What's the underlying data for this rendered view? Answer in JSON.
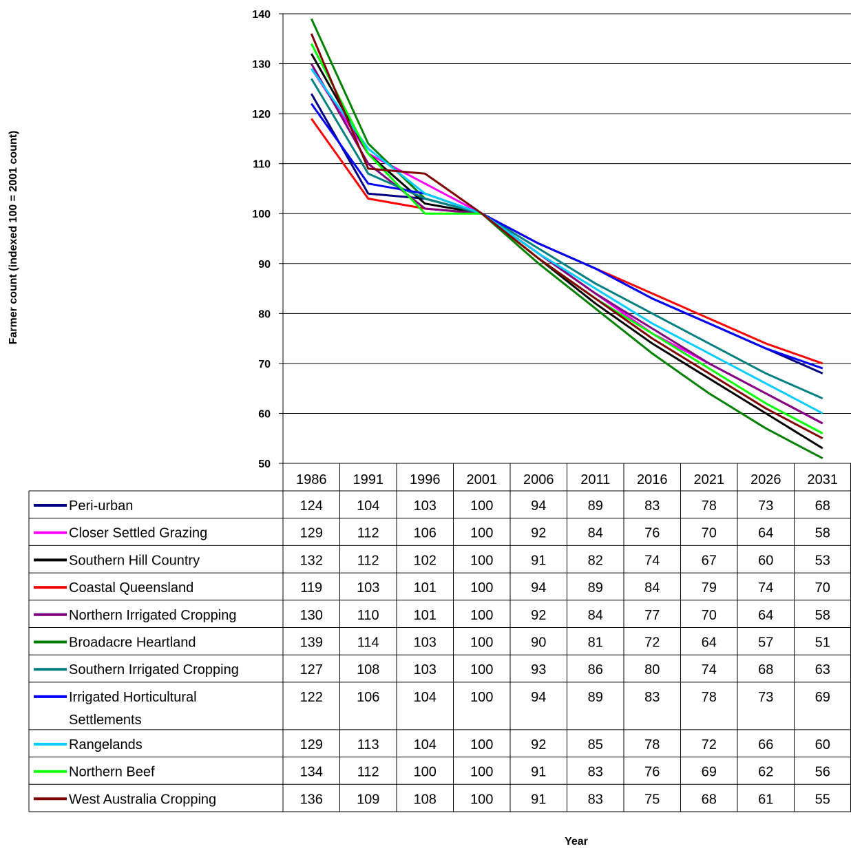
{
  "chart_data": {
    "type": "line",
    "title": "",
    "xlabel": "Year",
    "ylabel": "Farmer count (indexed 100 = 2001 count)",
    "ylim": [
      50,
      140
    ],
    "yticks": [
      "50",
      "60",
      "70",
      "80",
      "90",
      "100",
      "110",
      "120",
      "130",
      "140"
    ],
    "grid": true,
    "legend": "data table below chart",
    "categories": [
      "1986",
      "1991",
      "1996",
      "2001",
      "2006",
      "2011",
      "2016",
      "2021",
      "2026",
      "2031"
    ],
    "series": [
      {
        "name": "Peri-urban",
        "color": "#000080",
        "values": [
          124,
          104,
          103,
          100,
          94,
          89,
          83,
          78,
          73,
          68
        ]
      },
      {
        "name": "Closer Settled Grazing",
        "color": "#ff00ff",
        "values": [
          129,
          112,
          106,
          100,
          92,
          84,
          76,
          70,
          64,
          58
        ]
      },
      {
        "name": "Southern Hill Country",
        "color": "#000000",
        "values": [
          132,
          112,
          102,
          100,
          91,
          82,
          74,
          67,
          60,
          53
        ]
      },
      {
        "name": "Coastal Queensland",
        "color": "#ff0000",
        "values": [
          119,
          103,
          101,
          100,
          94,
          89,
          84,
          79,
          74,
          70
        ]
      },
      {
        "name": "Northern Irrigated Cropping",
        "color": "#800080",
        "values": [
          130,
          110,
          101,
          100,
          92,
          84,
          77,
          70,
          64,
          58
        ]
      },
      {
        "name": "Broadacre Heartland",
        "color": "#008000",
        "values": [
          139,
          114,
          103,
          100,
          90,
          81,
          72,
          64,
          57,
          51
        ]
      },
      {
        "name": "Southern Irrigated Cropping",
        "color": "#008080",
        "values": [
          127,
          108,
          103,
          100,
          93,
          86,
          80,
          74,
          68,
          63
        ]
      },
      {
        "name": "Irrigated Horticultural Settlements",
        "name_lines": [
          "Irrigated Horticultural",
          "Settlements"
        ],
        "color": "#0000ff",
        "values": [
          122,
          106,
          104,
          100,
          94,
          89,
          83,
          78,
          73,
          69
        ]
      },
      {
        "name": "Rangelands",
        "color": "#00ccff",
        "values": [
          129,
          113,
          104,
          100,
          92,
          85,
          78,
          72,
          66,
          60
        ]
      },
      {
        "name": "Northern Beef",
        "color": "#00ff00",
        "values": [
          134,
          112,
          100,
          100,
          91,
          83,
          76,
          69,
          62,
          56
        ]
      },
      {
        "name": "West Australia Cropping",
        "color": "#800000",
        "values": [
          136,
          109,
          108,
          100,
          91,
          83,
          75,
          68,
          61,
          55
        ]
      }
    ]
  }
}
